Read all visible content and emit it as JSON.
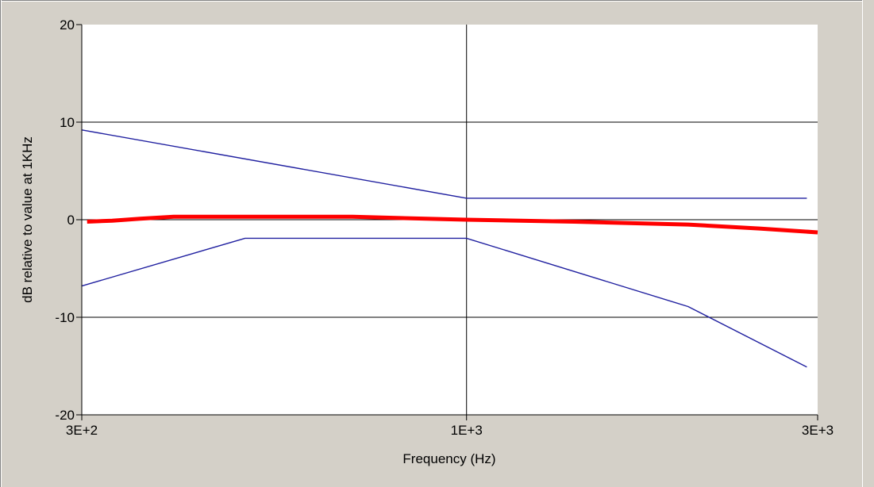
{
  "chart_data": {
    "type": "line",
    "xlabel": "Frequency (Hz)",
    "ylabel": "dB relative to value at 1KHz",
    "x_scale": "log",
    "xlim": [
      300,
      3000
    ],
    "ylim": [
      -20,
      20
    ],
    "x_ticks": [
      {
        "value": 300,
        "label": "3E+2"
      },
      {
        "value": 1000,
        "label": "1E+3"
      },
      {
        "value": 3000,
        "label": "3E+3"
      }
    ],
    "y_ticks": [
      {
        "value": 20,
        "label": "20"
      },
      {
        "value": 10,
        "label": "10"
      },
      {
        "value": 0,
        "label": "0"
      },
      {
        "value": -10,
        "label": "-10"
      },
      {
        "value": -20,
        "label": "-20"
      }
    ],
    "grid": {
      "horizontal": [
        -10,
        0,
        10
      ],
      "vertical": [
        1000
      ]
    },
    "series": [
      {
        "color": "#2020a0",
        "role": "upper-limit",
        "x": [
          300,
          1000,
          2900
        ],
        "y": [
          9.2,
          2.2,
          2.2
        ]
      },
      {
        "color": "#2020a0",
        "role": "lower-limit",
        "x": [
          300,
          500,
          1000,
          2000,
          2900
        ],
        "y": [
          -6.8,
          -1.9,
          -1.9,
          -8.9,
          -15.1
        ]
      },
      {
        "color": "#ff0000",
        "role": "measured",
        "x": [
          305,
          330,
          360,
          400,
          500,
          700,
          1000,
          1400,
          2000,
          2500,
          3000
        ],
        "y": [
          -0.2,
          -0.1,
          0.1,
          0.3,
          0.3,
          0.3,
          0.0,
          -0.2,
          -0.5,
          -0.9,
          -1.3
        ]
      }
    ]
  }
}
